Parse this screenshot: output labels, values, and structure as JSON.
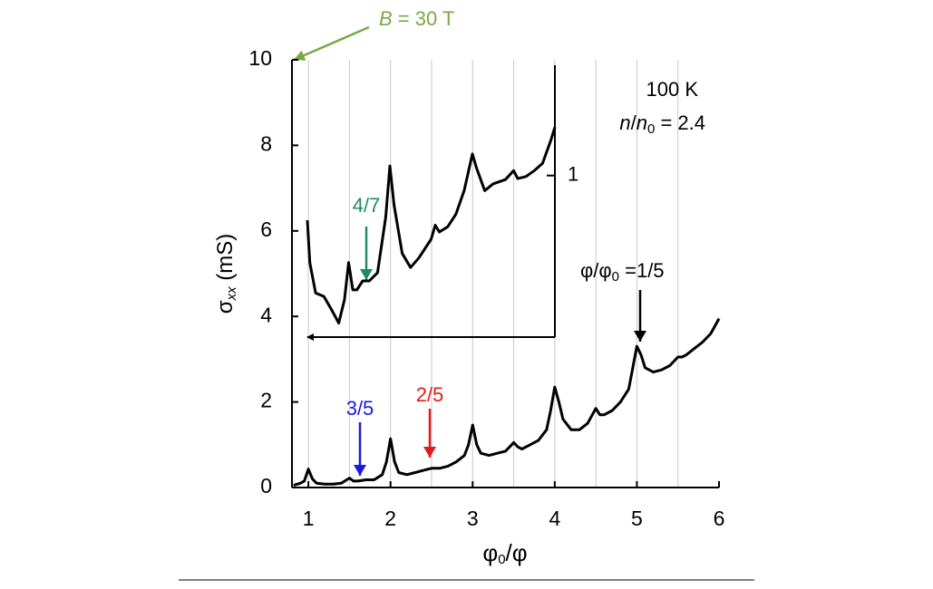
{
  "chart_data": [
    {
      "type": "line",
      "x_label": [
        "φ",
        "0",
        "/φ"
      ],
      "y_label": [
        "σ",
        "xx",
        " (mS)"
      ],
      "field_label": [
        "B",
        " = 30 T"
      ],
      "temperature_label": "100 K",
      "density_label": [
        "n",
        "/",
        "n",
        "0",
        " = 2.4"
      ],
      "flux_label": [
        "φ/φ",
        "0",
        " =1/5"
      ],
      "fraction_labels": [
        "3/5",
        "2/5"
      ],
      "fraction_colors": [
        "#1a1ae0",
        "#e01b1b"
      ],
      "field_color": "#79a845",
      "color": "#000000",
      "xlim": [
        0.8,
        6
      ],
      "ylim": [
        0,
        10
      ],
      "xticks": [
        1,
        2,
        3,
        4,
        5,
        6
      ],
      "yticks": [
        0,
        2,
        4,
        6,
        8,
        10
      ],
      "xgrid": [
        1,
        1.5,
        2,
        2.5,
        3,
        3.5,
        4,
        4.5,
        5,
        5.5
      ],
      "x": [
        0.82,
        0.9,
        0.95,
        1.0,
        1.05,
        1.1,
        1.2,
        1.3,
        1.4,
        1.5,
        1.55,
        1.6,
        1.7,
        1.8,
        1.9,
        1.95,
        2.0,
        2.05,
        2.1,
        2.2,
        2.3,
        2.4,
        2.5,
        2.6,
        2.7,
        2.8,
        2.9,
        2.95,
        3.0,
        3.05,
        3.1,
        3.2,
        3.3,
        3.4,
        3.5,
        3.55,
        3.6,
        3.7,
        3.8,
        3.9,
        3.95,
        4.0,
        4.05,
        4.1,
        4.2,
        4.3,
        4.4,
        4.5,
        4.55,
        4.6,
        4.7,
        4.8,
        4.9,
        4.95,
        5.0,
        5.05,
        5.1,
        5.2,
        5.3,
        5.4,
        5.5,
        5.55,
        5.6,
        5.7,
        5.8,
        5.9,
        6.0
      ],
      "values": [
        0.05,
        0.1,
        0.15,
        0.43,
        0.2,
        0.1,
        0.08,
        0.08,
        0.1,
        0.22,
        0.15,
        0.15,
        0.18,
        0.18,
        0.3,
        0.6,
        1.14,
        0.6,
        0.35,
        0.3,
        0.35,
        0.4,
        0.45,
        0.45,
        0.5,
        0.6,
        0.75,
        1.0,
        1.46,
        1.0,
        0.8,
        0.75,
        0.8,
        0.85,
        1.05,
        0.95,
        0.9,
        1.0,
        1.1,
        1.35,
        1.8,
        2.35,
        2.0,
        1.6,
        1.35,
        1.35,
        1.5,
        1.85,
        1.7,
        1.7,
        1.8,
        2.0,
        2.3,
        2.8,
        3.3,
        3.1,
        2.8,
        2.7,
        2.75,
        2.85,
        3.05,
        3.05,
        3.1,
        3.25,
        3.4,
        3.6,
        3.95
      ]
    },
    {
      "type": "line",
      "log_y": true,
      "fraction_label": "4/7",
      "fraction_color": "#1f8a6a",
      "color": "#000000",
      "xlim": [
        1,
        4
      ],
      "ylim": [
        0.2,
        3
      ],
      "yticks": [
        1
      ],
      "x": [
        1.0,
        1.03,
        1.1,
        1.2,
        1.3,
        1.38,
        1.45,
        1.5,
        1.55,
        1.6,
        1.67,
        1.75,
        1.85,
        1.95,
        2.0,
        2.05,
        2.15,
        2.25,
        2.35,
        2.5,
        2.55,
        2.6,
        2.7,
        2.8,
        2.9,
        3.0,
        3.05,
        3.15,
        3.25,
        3.4,
        3.5,
        3.55,
        3.65,
        3.75,
        3.85,
        3.95,
        4.0
      ],
      "values": [
        0.64,
        0.42,
        0.31,
        0.3,
        0.26,
        0.23,
        0.29,
        0.42,
        0.32,
        0.32,
        0.35,
        0.35,
        0.38,
        0.66,
        1.1,
        0.75,
        0.46,
        0.4,
        0.44,
        0.53,
        0.61,
        0.57,
        0.6,
        0.68,
        0.86,
        1.24,
        1.08,
        0.86,
        0.92,
        0.96,
        1.05,
        0.97,
        0.99,
        1.05,
        1.13,
        1.42,
        1.62
      ]
    }
  ]
}
